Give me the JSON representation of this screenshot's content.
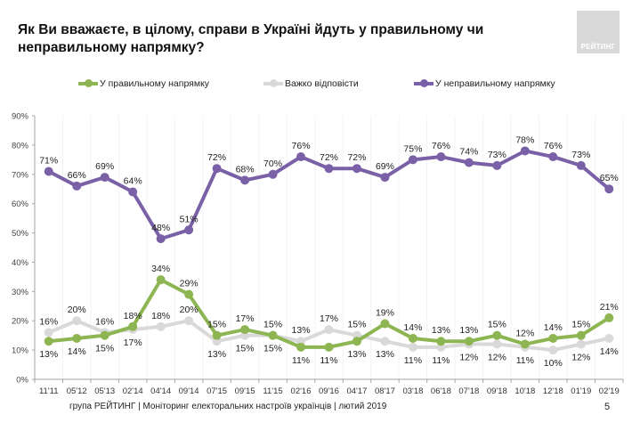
{
  "title": "Як Ви вважаєте, в цілому, справи в Україні йдуть у правильному чи неправильному напрямку?",
  "logo_text": "РЕЙТИНГ",
  "footer": "група РЕЙТИНГ |  Моніторинг електоральних настроїв українців | лютий  2019",
  "page_number": "5",
  "legend": [
    {
      "label": "У правильному напрямку",
      "color": "#8db652"
    },
    {
      "label": "Важко відповісти",
      "color": "#d9d9d9"
    },
    {
      "label": "У неправильному напрямку",
      "color": "#7a60a6"
    }
  ],
  "chart_data": {
    "type": "line",
    "title": "Як Ви вважаєте, в цілому, справи в Україні йдуть у правильному чи неправильному напрямку?",
    "xlabel": "",
    "ylabel": "",
    "ylim": [
      0,
      90
    ],
    "yticks": [
      "0%",
      "10%",
      "20%",
      "30%",
      "40%",
      "50%",
      "60%",
      "70%",
      "80%",
      "90%"
    ],
    "grid": false,
    "legend_position": "top",
    "categories": [
      "11'11",
      "05'12",
      "05'13",
      "02'14",
      "04'14",
      "09'14",
      "07'15",
      "09'15",
      "11'15",
      "02'16",
      "09'16",
      "04'17",
      "08'17",
      "03'18",
      "06'18",
      "07'18",
      "09'18",
      "10'18",
      "12'18",
      "01'19",
      "02'19"
    ],
    "series": [
      {
        "name": "У правильному напрямку",
        "color": "#8db652",
        "values": [
          13,
          14,
          15,
          18,
          34,
          29,
          15,
          17,
          15,
          11,
          11,
          13,
          19,
          14,
          13,
          13,
          15,
          12,
          14,
          15,
          21
        ]
      },
      {
        "name": "Важко відповісти",
        "color": "#d9d9d9",
        "values": [
          16,
          20,
          16,
          17,
          18,
          20,
          13,
          15,
          15,
          13,
          17,
          15,
          13,
          11,
          11,
          12,
          12,
          11,
          10,
          12,
          14
        ]
      },
      {
        "name": "У неправильному напрямку",
        "color": "#7a60a6",
        "values": [
          71,
          66,
          69,
          64,
          48,
          51,
          72,
          68,
          70,
          76,
          72,
          72,
          69,
          75,
          76,
          74,
          73,
          78,
          76,
          73,
          65
        ]
      }
    ],
    "label_positions": {
      "У правильному напрямку": [
        "below",
        "below",
        "below",
        "above",
        "above",
        "above",
        "above",
        "above",
        "above",
        "below",
        "below",
        "below",
        "above",
        "above",
        "above",
        "above",
        "above",
        "above",
        "above",
        "above",
        "above"
      ],
      "Важко відповісти": [
        "above",
        "above",
        "above",
        "below",
        "above",
        "above",
        "below",
        "below",
        "below",
        "above",
        "above",
        "above",
        "below",
        "below",
        "below",
        "below",
        "below",
        "below",
        "below",
        "below",
        "below"
      ],
      "У неправильному напрямку": [
        "above",
        "above",
        "above",
        "above",
        "above",
        "above",
        "above",
        "above",
        "above",
        "above",
        "above",
        "above",
        "above",
        "above",
        "above",
        "above",
        "above",
        "above",
        "above",
        "above",
        "above"
      ]
    }
  }
}
